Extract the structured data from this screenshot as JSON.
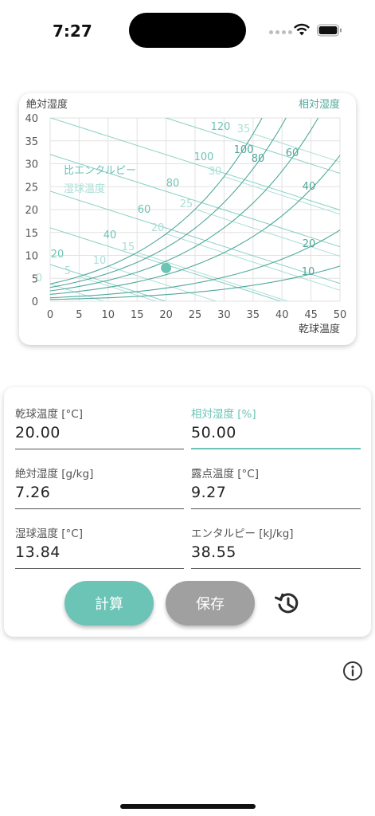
{
  "status_bar": {
    "time": "7:27"
  },
  "chart": {
    "y_axis_label": "絶対湿度",
    "x_axis_label": "乾球温度",
    "rh_label": "相対湿度",
    "enthalpy_label": "比エンタルピー",
    "wetbulb_label": "湿球温度",
    "x_ticks": [
      "0",
      "5",
      "10",
      "15",
      "20",
      "25",
      "30",
      "35",
      "40",
      "45",
      "50"
    ],
    "y_ticks": [
      "0",
      "5",
      "10",
      "15",
      "20",
      "25",
      "30",
      "35",
      "40"
    ],
    "rh_curve_labels": [
      "10",
      "20",
      "40",
      "60",
      "80",
      "100"
    ],
    "enthalpy_labels": [
      "20",
      "40",
      "60",
      "80",
      "100",
      "120"
    ],
    "wetbulb_labels": [
      "0",
      "5",
      "10",
      "15",
      "20",
      "25",
      "30",
      "35"
    ],
    "state_point": {
      "dry_bulb": 20,
      "abs_humidity": 7.26
    },
    "colors": {
      "rh": "#4fa89a",
      "enthalpy": "#6cc4b6",
      "wetbulb": "#a9dfd6",
      "grid": "#e2e2e2",
      "point": "#6cc4b6"
    }
  },
  "form": {
    "fields": [
      {
        "label": "乾球温度 [°C]",
        "value": "20.00"
      },
      {
        "label": "相対湿度 [%]",
        "value": "50.00"
      },
      {
        "label": "絶対湿度 [g/kg]",
        "value": "7.26"
      },
      {
        "label": "露点温度 [°C]",
        "value": "9.27"
      },
      {
        "label": "湿球温度 [°C]",
        "value": "13.84"
      },
      {
        "label": "エンタルピー [kJ/kg]",
        "value": "38.55"
      }
    ],
    "calc_button": "計算",
    "save_button": "保存"
  },
  "icons": {
    "history": "history-icon",
    "info": "info-icon"
  }
}
